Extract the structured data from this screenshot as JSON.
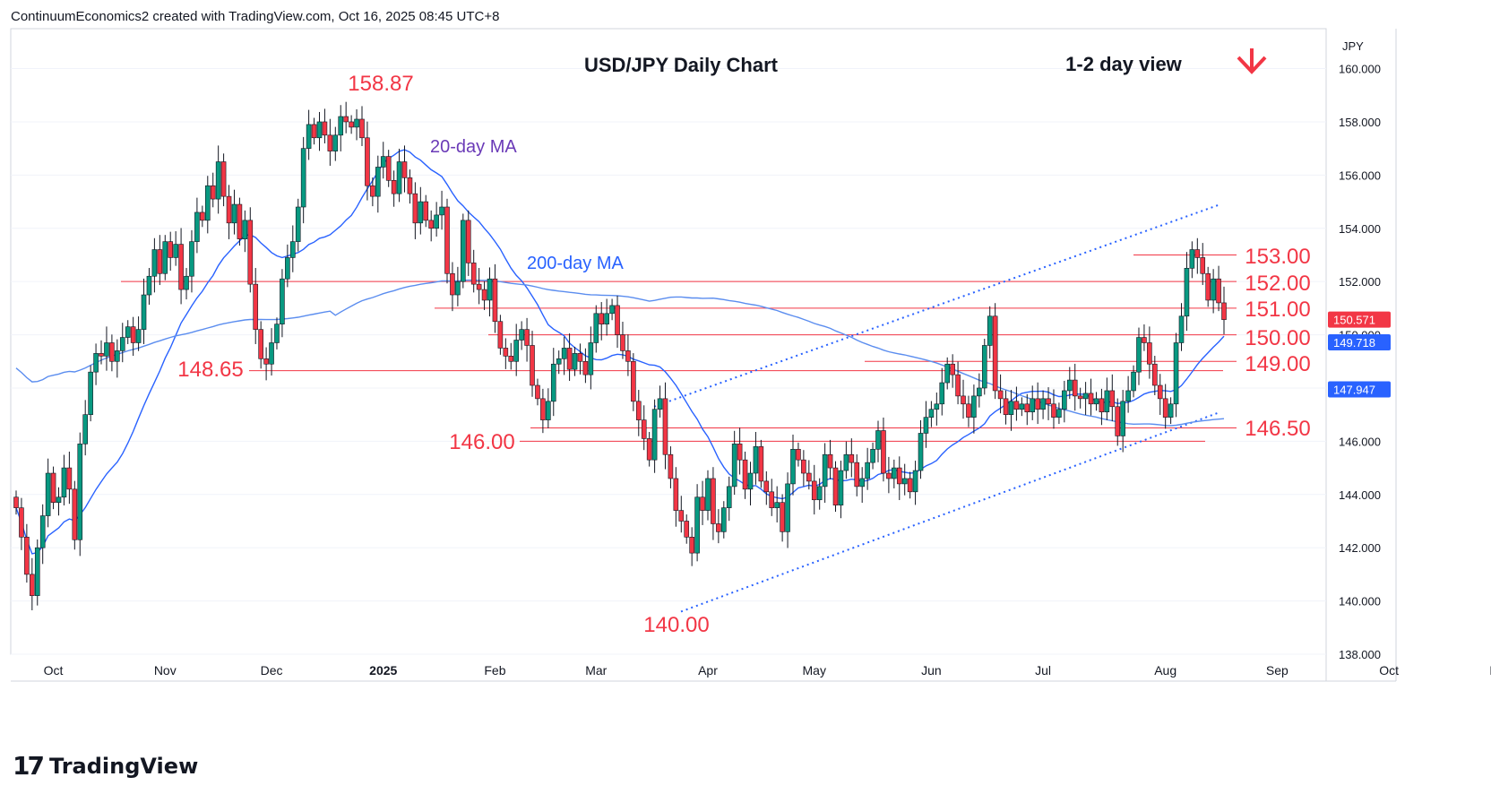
{
  "header": {
    "attribution": "ContinuumEconomics2 created with TradingView.com, Oct 16, 2025 08:45 UTC+8"
  },
  "footer": {
    "brand": "TradingView",
    "logo_mark": "17"
  },
  "currency_label": "JPY",
  "colors": {
    "up": "#089981",
    "down": "#f23645",
    "ma20": "#2962ff",
    "ma200": "#5b8def",
    "level": "#f23645",
    "annotation": "#f23645",
    "ma_label20": "#6a3ab7",
    "ma_label200": "#2962ff",
    "grid": "#f0f3fa",
    "axis_text": "#131722"
  },
  "chart_data": {
    "type": "candlestick",
    "title": "USD/JPY Daily Chart",
    "view_note": "1-2 day view",
    "direction_icon": "arrow-down-icon",
    "ylim": [
      138.0,
      161.5
    ],
    "y_ticks": [
      "160.000",
      "158.000",
      "156.000",
      "154.000",
      "152.000",
      "150.000",
      "148.000",
      "146.000",
      "144.000",
      "142.000",
      "140.000",
      "138.000"
    ],
    "x_ticks": [
      "Oct",
      "Nov",
      "Dec",
      "2025",
      "Feb",
      "Mar",
      "Apr",
      "May",
      "Jun",
      "Jul",
      "Aug",
      "Sep",
      "Oct",
      "Nov"
    ],
    "price_tags": [
      {
        "label": "150.571",
        "value": 150.571,
        "color": "#f23645"
      },
      {
        "label": "149.718",
        "value": 149.718,
        "color": "#2962ff"
      },
      {
        "label": "147.947",
        "value": 147.947,
        "color": "#2962ff"
      }
    ],
    "annotations": [
      {
        "text": "158.87",
        "value": 158.87
      },
      {
        "text": "148.65",
        "value": 148.65
      },
      {
        "text": "146.00",
        "value": 146.0
      },
      {
        "text": "140.00",
        "value": 140.0
      },
      {
        "text": "153.00",
        "value": 153.0
      },
      {
        "text": "152.00",
        "value": 152.0
      },
      {
        "text": "151.00",
        "value": 151.0
      },
      {
        "text": "150.00",
        "value": 150.0
      },
      {
        "text": "149.00",
        "value": 149.0
      },
      {
        "text": "146.50",
        "value": 146.5
      }
    ],
    "ma_labels": [
      "20-day MA",
      "200-day MA"
    ],
    "closes": [
      143.5,
      142.4,
      141.0,
      140.2,
      142.0,
      143.2,
      144.8,
      143.7,
      143.9,
      145.0,
      144.2,
      142.3,
      145.9,
      147.0,
      148.6,
      149.3,
      149.2,
      149.7,
      149.0,
      149.4,
      149.9,
      150.3,
      149.7,
      150.2,
      151.5,
      152.2,
      153.2,
      152.3,
      153.5,
      152.9,
      153.4,
      151.7,
      152.2,
      153.5,
      154.6,
      154.3,
      155.6,
      155.1,
      156.5,
      155.2,
      154.2,
      154.9,
      153.6,
      154.3,
      151.9,
      150.2,
      149.1,
      148.9,
      149.7,
      150.4,
      152.1,
      152.9,
      153.5,
      154.8,
      157.0,
      157.9,
      157.4,
      158.0,
      157.5,
      156.9,
      157.5,
      158.2,
      158.0,
      157.8,
      158.1,
      157.4,
      155.6,
      155.2,
      156.3,
      156.7,
      155.8,
      155.3,
      156.5,
      155.9,
      155.3,
      154.2,
      155.0,
      154.3,
      154.0,
      154.5,
      154.8,
      152.3,
      151.5,
      152.0,
      154.3,
      152.7,
      151.9,
      151.7,
      151.3,
      152.1,
      150.5,
      149.5,
      149.2,
      149.0,
      149.8,
      150.2,
      149.6,
      148.1,
      147.6,
      146.8,
      147.5,
      148.9,
      149.1,
      149.5,
      148.7,
      149.3,
      149.0,
      148.5,
      149.7,
      150.8,
      150.4,
      150.8,
      151.1,
      150.0,
      149.4,
      149.0,
      147.5,
      146.8,
      146.1,
      145.3,
      147.2,
      147.6,
      145.5,
      144.6,
      143.4,
      143.0,
      142.4,
      141.8,
      143.9,
      143.4,
      144.6,
      142.9,
      142.6,
      143.5,
      144.3,
      145.9,
      145.3,
      144.2,
      144.8,
      145.8,
      144.5,
      144.1,
      143.5,
      143.7,
      142.6,
      144.4,
      145.7,
      145.3,
      144.8,
      144.5,
      143.8,
      144.3,
      145.5,
      145.0,
      143.6,
      144.9,
      145.5,
      145.2,
      144.3,
      144.6,
      145.2,
      145.7,
      146.4,
      144.8,
      144.6,
      145.0,
      144.4,
      144.6,
      144.1,
      144.9,
      146.3,
      146.9,
      147.2,
      147.4,
      148.2,
      148.9,
      148.5,
      147.7,
      147.4,
      146.9,
      147.7,
      148.0,
      149.6,
      150.7,
      147.9,
      147.6,
      147.0,
      147.5,
      147.2,
      147.4,
      147.1,
      147.6,
      147.2,
      147.6,
      147.4,
      146.9,
      147.2,
      147.9,
      148.3,
      147.7,
      147.6,
      147.8,
      147.4,
      147.6,
      147.1,
      147.9,
      147.3,
      146.2,
      147.5,
      147.9,
      148.6,
      149.9,
      149.7,
      148.9,
      148.1,
      147.6,
      146.9,
      147.4,
      149.7,
      150.7,
      152.5,
      153.2,
      152.9,
      152.3,
      151.3,
      152.1,
      151.2,
      150.57
    ],
    "x_labels_index": [
      7,
      28,
      48,
      69,
      90,
      109,
      130,
      150,
      172,
      193,
      216,
      237,
      258,
      279
    ]
  }
}
